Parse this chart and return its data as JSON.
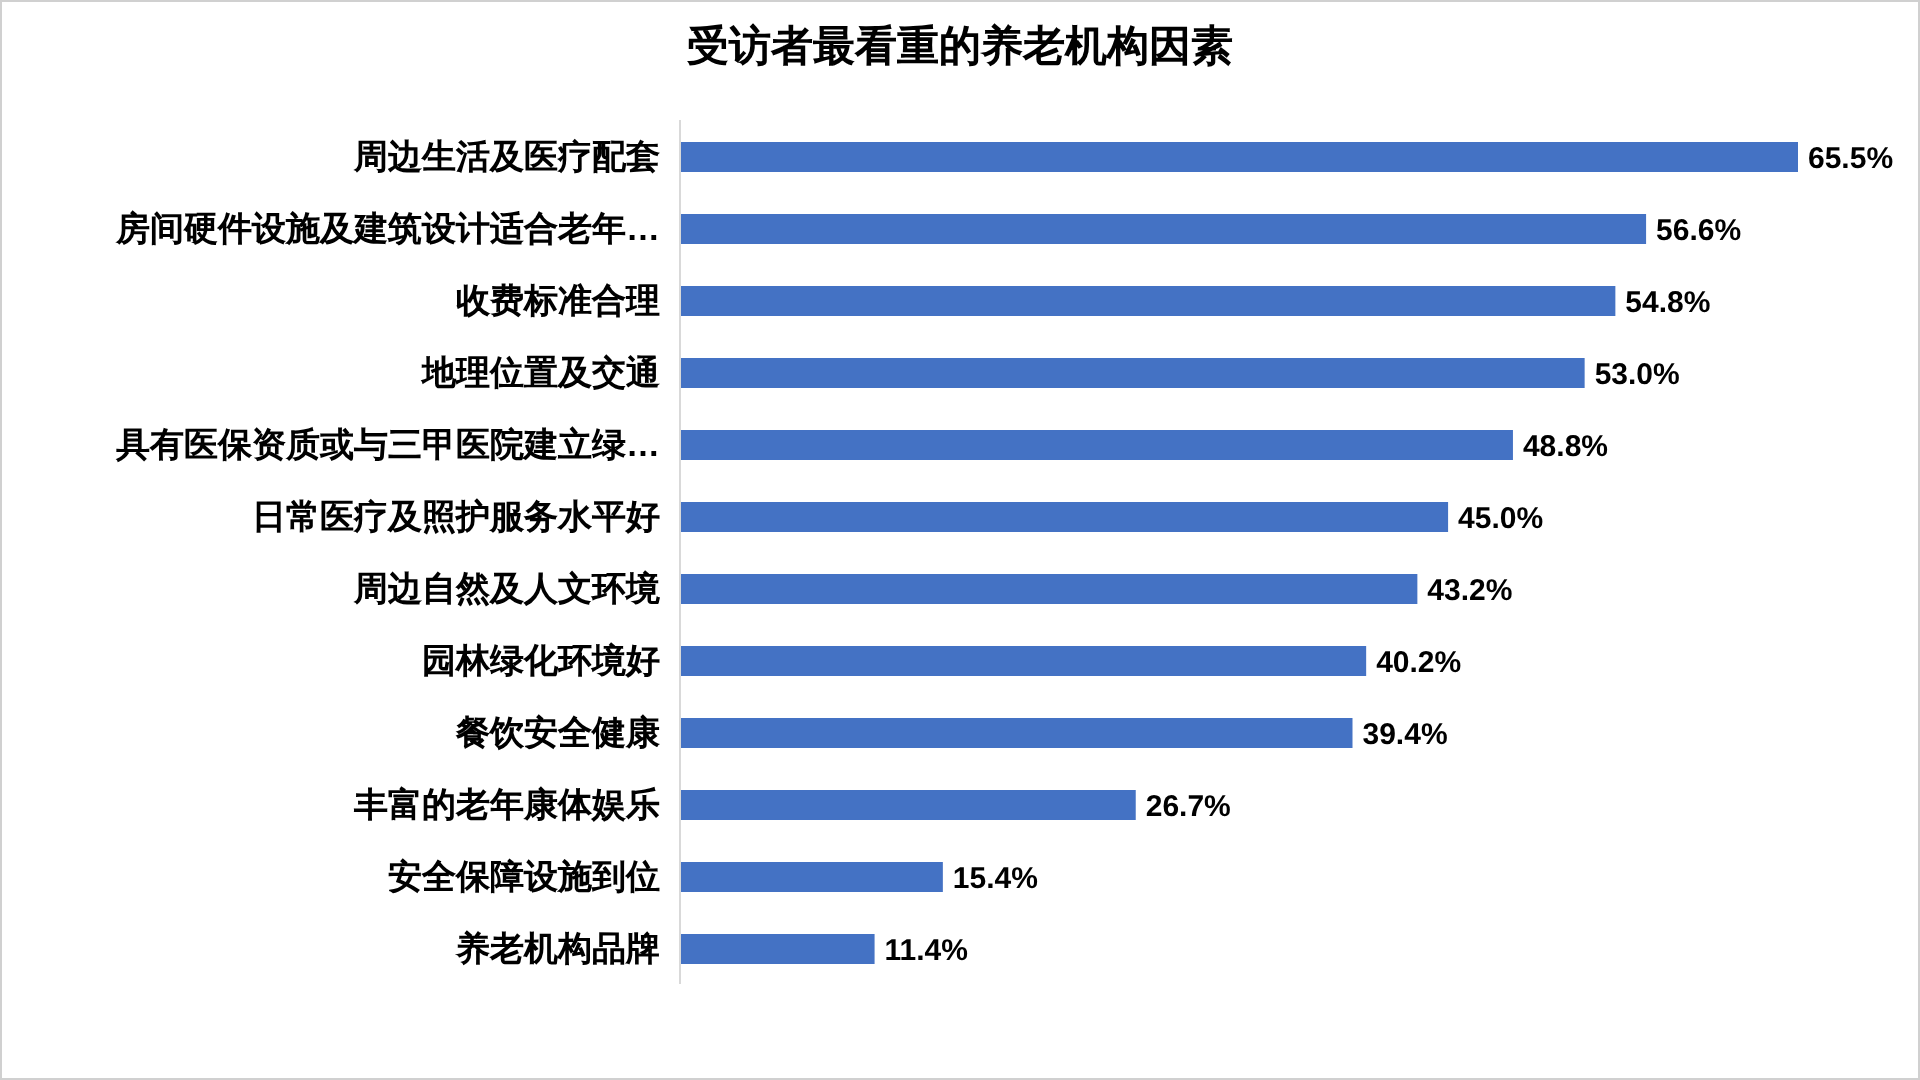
{
  "chart_data": {
    "type": "bar",
    "orientation": "horizontal",
    "title": "受访者最看重的养老机构因素",
    "categories": [
      "周边生活及医疗配套",
      "房间硬件设施及建筑设计适合老年…",
      "收费标准合理",
      "地理位置及交通",
      "具有医保资质或与三甲医院建立绿…",
      "日常医疗及照护服务水平好",
      "周边自然及人文环境",
      "园林绿化环境好",
      "餐饮安全健康",
      "丰富的老年康体娱乐",
      "安全保障设施到位",
      "养老机构品牌"
    ],
    "values": [
      65.5,
      56.6,
      54.8,
      53.0,
      48.8,
      45.0,
      43.2,
      40.2,
      39.4,
      26.7,
      15.4,
      11.4
    ],
    "value_labels": [
      "65.5%",
      "56.6%",
      "54.8%",
      "53.0%",
      "48.8%",
      "45.0%",
      "43.2%",
      "40.2%",
      "39.4%",
      "26.7%",
      "15.4%",
      "11.4%"
    ],
    "color": "#4472c4",
    "tick_labels": "y"
  }
}
